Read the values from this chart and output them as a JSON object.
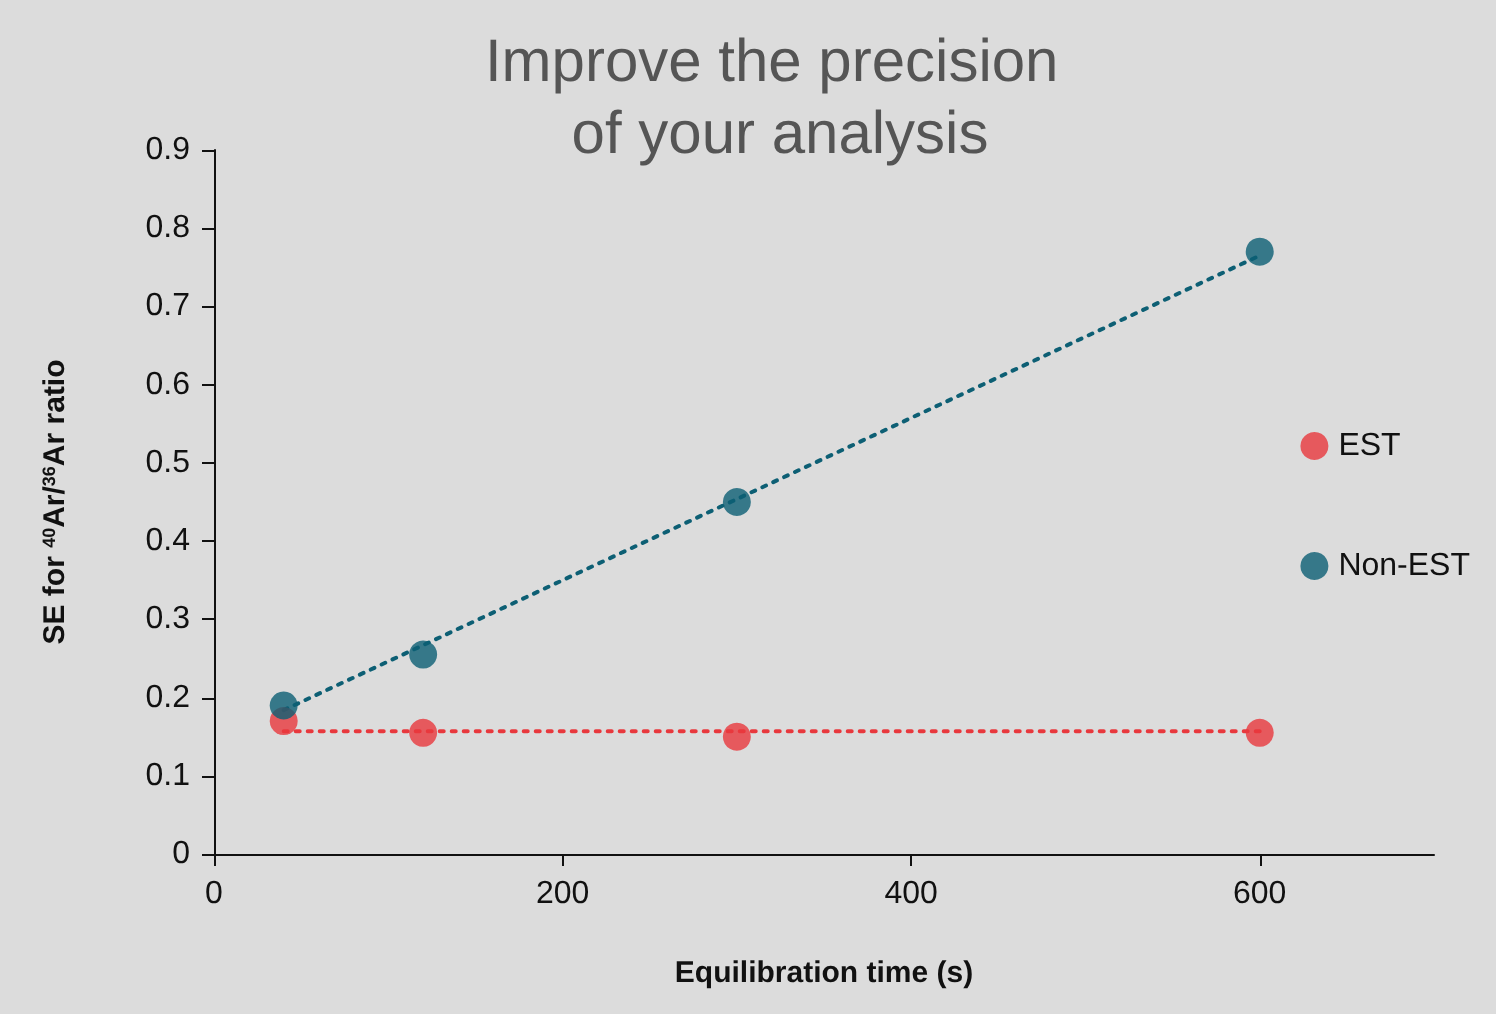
{
  "chart_data": {
    "type": "scatter",
    "title": "Improve the precision of your analysis",
    "xlabel": "Equilibration time (s)",
    "ylabel": "SE for $^{40}$Ar/$^{36}$Ar ratio",
    "xlim": [
      0,
      700
    ],
    "xticks": [
      0,
      200,
      400,
      600
    ],
    "ylim": [
      0,
      0.9
    ],
    "yticks": [
      0,
      0.1,
      0.2,
      0.3,
      0.4,
      0.5,
      0.6,
      0.7,
      0.8,
      0.9
    ],
    "grid": false,
    "legend": "right",
    "series": [
      {
        "name": "EST",
        "color": "#e8383d",
        "marker": "circle",
        "x": [
          40,
          120,
          300,
          600
        ],
        "values": [
          0.17,
          0.155,
          0.15,
          0.155
        ]
      },
      {
        "name": "Non-EST",
        "color": "#0d5f74",
        "marker": "circle",
        "x": [
          40,
          120,
          300,
          600
        ],
        "values": [
          0.19,
          0.255,
          0.45,
          0.77
        ]
      },
      {
        "type": "line",
        "color": "#e8383d",
        "marker": "none",
        "line_style": "dotted",
        "x": [
          40,
          600
        ],
        "values": [
          0.157,
          0.157
        ]
      },
      {
        "type": "line",
        "color": "#0d5f74",
        "marker": "none",
        "line_style": "dotted",
        "x": [
          40,
          600
        ],
        "values": [
          0.184,
          0.765
        ]
      }
    ]
  }
}
